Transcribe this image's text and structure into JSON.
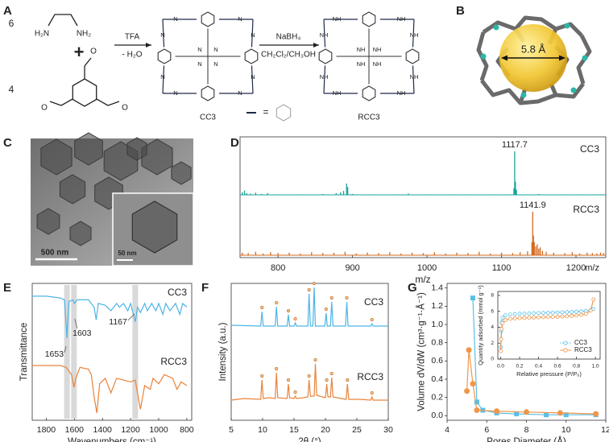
{
  "panel_a": {
    "label": "A",
    "diamine_coefficient": "6",
    "diamine_labels": [
      "H₂N",
      "NH₂"
    ],
    "plus": "+",
    "aldehyde_coefficient": "4",
    "aldehyde_labels": [
      "O",
      "O",
      "O"
    ],
    "step1_reagents": [
      "TFA",
      "- H₂O"
    ],
    "step2_reagents": [
      "NaBH₄",
      "CH₂Cl₂/CH₃OH"
    ],
    "products": [
      "CC3",
      "RCC3"
    ],
    "cc3_atoms": [
      "N",
      "N",
      "N",
      "N",
      "N",
      "N",
      "N",
      "N",
      "N",
      "N",
      "N",
      "N"
    ],
    "rcc3_atoms": [
      "NH",
      "NH",
      "NH",
      "NH",
      "NH",
      "NH",
      "NH",
      "NH",
      "NH",
      "NH",
      "NH",
      "NH"
    ],
    "key_equals": "="
  },
  "panel_b": {
    "label": "B",
    "cavity_label": "5.8 Å"
  },
  "panel_c": {
    "label": "C",
    "scale_bars": [
      "500 nm",
      "50 nm"
    ]
  },
  "chart_data": [
    {
      "panel": "D",
      "type": "stem",
      "x_label": "m/z",
      "xlim": [
        749,
        1240
      ],
      "xticks": [
        800,
        900,
        1000,
        1100,
        1200
      ],
      "ylim": [
        0,
        100
      ],
      "series": [
        {
          "name": "CC3",
          "color": "#17a398",
          "peak_label": 1117.7,
          "x": [
            752,
            755,
            758,
            763,
            770,
            778,
            786,
            800,
            830,
            860,
            878,
            884,
            888,
            892,
            893.5,
            900,
            930,
            960,
            975,
            1000,
            1030,
            1060,
            1090,
            1110,
            1116.7,
            1117.7,
            1118.7,
            1120,
            1135,
            1150,
            1180,
            1210,
            1225,
            1235
          ],
          "values": [
            6,
            10,
            4,
            3,
            5,
            2,
            4,
            1,
            1,
            2,
            4,
            6,
            9,
            26,
            18,
            2,
            1,
            1,
            3,
            1,
            1,
            1,
            1,
            1,
            15,
            100,
            30,
            12,
            1,
            2,
            1,
            1,
            1,
            1
          ]
        },
        {
          "name": "RCC3",
          "color": "#d2691e",
          "peak_label": 1141.9,
          "x": [
            752,
            760,
            770,
            780,
            790,
            800,
            815,
            830,
            845,
            860,
            875,
            890,
            905,
            920,
            935,
            950,
            965,
            980,
            995,
            1010,
            1025,
            1040,
            1055,
            1070,
            1085,
            1100,
            1115,
            1125,
            1135,
            1140.9,
            1141.9,
            1142.9,
            1144,
            1146,
            1148,
            1150,
            1152,
            1155,
            1160,
            1170,
            1185,
            1195,
            1205,
            1215,
            1222,
            1228,
            1233,
            1237
          ],
          "values": [
            6,
            5,
            8,
            4,
            7,
            5,
            6,
            4,
            7,
            5,
            6,
            8,
            4,
            6,
            5,
            7,
            4,
            6,
            5,
            7,
            4,
            6,
            5,
            8,
            4,
            6,
            5,
            7,
            9,
            30,
            100,
            45,
            30,
            20,
            25,
            15,
            18,
            10,
            8,
            6,
            5,
            7,
            4,
            6,
            5,
            4,
            6,
            5
          ]
        }
      ]
    },
    {
      "panel": "E",
      "type": "line",
      "x_label": "Wavenumbers (cm⁻¹)",
      "y_label": "Transmittance",
      "xlim": [
        1900,
        765
      ],
      "xticks": [
        1800,
        1600,
        1400,
        1200,
        1000,
        800
      ],
      "ylim": [
        20,
        95
      ],
      "highlights": [
        1653,
        1603,
        1167
      ],
      "series": [
        {
          "name": "CC3",
          "color": "#4db4e6",
          "x": [
            1900,
            1800,
            1700,
            1670,
            1653,
            1640,
            1610,
            1600,
            1580,
            1500,
            1460,
            1445,
            1430,
            1380,
            1340,
            1300,
            1280,
            1250,
            1220,
            1200,
            1167,
            1150,
            1130,
            1100,
            1080,
            1050,
            1020,
            1000,
            970,
            950,
            920,
            880,
            850,
            830,
            800
          ],
          "values": [
            88,
            88,
            87,
            86,
            65,
            85,
            86,
            84,
            86,
            86,
            82,
            75,
            84,
            83,
            80,
            84,
            82,
            84,
            80,
            84,
            74,
            82,
            79,
            84,
            80,
            84,
            80,
            84,
            78,
            84,
            80,
            84,
            78,
            84,
            82
          ]
        },
        {
          "name": "RCC3",
          "color": "#e8833a",
          "x": [
            1900,
            1800,
            1700,
            1660,
            1640,
            1620,
            1603,
            1590,
            1560,
            1500,
            1480,
            1460,
            1440,
            1420,
            1380,
            1340,
            1300,
            1250,
            1200,
            1167,
            1130,
            1100,
            1060,
            1040,
            1000,
            960,
            900,
            870,
            840,
            800
          ],
          "values": [
            50,
            50,
            50,
            49,
            47,
            45,
            38,
            43,
            49,
            48,
            45,
            33,
            24,
            40,
            43,
            35,
            43,
            42,
            41,
            42,
            26,
            39,
            37,
            43,
            40,
            45,
            43,
            37,
            41,
            39
          ]
        }
      ]
    },
    {
      "panel": "F",
      "type": "line",
      "x_label": "2θ (°)",
      "y_label": "Intensity (a.u.)",
      "xlim": [
        5,
        30
      ],
      "xticks": [
        5,
        10,
        15,
        20,
        25,
        30
      ],
      "ylim": [
        0,
        170
      ],
      "peak_markers": true,
      "series": [
        {
          "name": "CC3",
          "color": "#4db4e6",
          "x": [
            5,
            9.7,
            9.9,
            10.1,
            12.0,
            12.2,
            12.4,
            13.9,
            14.1,
            14.3,
            15.0,
            15.2,
            15.4,
            17.2,
            17.4,
            17.6,
            18.0,
            18.2,
            18.4,
            19.9,
            20.1,
            20.3,
            20.8,
            21.0,
            21.2,
            23.2,
            23.4,
            23.6,
            27.2,
            27.4,
            27.6,
            30
          ],
          "values": [
            118,
            117,
            135,
            117,
            117,
            141,
            117,
            117,
            131,
            117,
            117,
            121,
            117,
            117,
            157,
            117,
            117,
            165,
            117,
            117,
            133,
            117,
            117,
            147,
            117,
            117,
            147,
            117,
            117,
            120,
            117,
            117
          ]
        },
        {
          "name": "RCC3",
          "color": "#e8833a",
          "x": [
            5,
            7,
            9.7,
            9.9,
            10.1,
            11,
            12.0,
            12.2,
            12.4,
            13.9,
            14.1,
            14.3,
            15.0,
            15.2,
            15.4,
            16.5,
            17.2,
            17.4,
            17.6,
            18.2,
            18.4,
            18.6,
            20.0,
            20.2,
            20.4,
            20.8,
            21.0,
            21.2,
            22.5,
            23.3,
            23.5,
            23.7,
            25.5,
            27.2,
            27.4,
            27.6,
            30
          ],
          "values": [
            25,
            27,
            26,
            50,
            27,
            28,
            27,
            59,
            28,
            27,
            45,
            28,
            27,
            30,
            27,
            28,
            29,
            50,
            30,
            30,
            70,
            31,
            28,
            45,
            29,
            29,
            53,
            29,
            27,
            26,
            45,
            26,
            26,
            25,
            29,
            25,
            25
          ]
        }
      ]
    },
    {
      "panel": "G",
      "type": "line",
      "x_label": "Pores Diameter (Å)",
      "y_label": "Volume dV/dW (cm³·g⁻¹·Å⁻¹)",
      "xlim": [
        4,
        12
      ],
      "xticks": [
        4,
        6,
        8,
        10,
        12
      ],
      "ylim": [
        -0.05,
        1.45
      ],
      "yticks": [
        {
          "value": 0,
          "label": "0.0"
        },
        0.2,
        0.4,
        0.6,
        0.8,
        {
          "value": 1,
          "label": "1.0"
        },
        1.2,
        1.4
      ],
      "series": [
        {
          "color": "#5bbfe6",
          "marker": "square",
          "x": [
            5.3,
            5.5,
            5.8,
            6.5,
            7.5,
            9,
            10,
            11.5
          ],
          "values": [
            1.29,
            0.15,
            0.06,
            0.03,
            0.02,
            0.01,
            0.01,
            0.01
          ]
        },
        {
          "color": "#f0964a",
          "marker": "circle",
          "x": [
            5.0,
            5.1,
            5.3,
            5.5,
            6.5,
            8,
            9.7,
            11.5
          ],
          "values": [
            0.27,
            0.72,
            0.35,
            0.06,
            0.05,
            0.04,
            0.03,
            0.02
          ]
        }
      ],
      "inset": {
        "type": "line",
        "x_label": "Relative pressure (P/P₀)",
        "y_label": "Quantity adsorbed (mmol g⁻¹)",
        "xlim": [
          -0.03,
          1.05
        ],
        "ylim": [
          0,
          8.5
        ],
        "legend": "lower right",
        "xticks": [
          {
            "value": 0,
            "label": "0.0"
          },
          0.2,
          0.4,
          0.6,
          0.8,
          {
            "value": 1,
            "label": "1.0"
          }
        ],
        "yticks": [
          0,
          2,
          4,
          6,
          8
        ],
        "x": [
          0.001,
          0.005,
          0.01,
          0.02,
          0.05,
          0.1,
          0.15,
          0.2,
          0.25,
          0.3,
          0.35,
          0.4,
          0.45,
          0.5,
          0.55,
          0.6,
          0.65,
          0.7,
          0.75,
          0.8,
          0.85,
          0.9,
          0.95,
          0.98
        ],
        "series": [
          {
            "name": "CC3",
            "color": "#5bbfe6",
            "line": "dotted",
            "values": [
              1.5,
              3.5,
              4.6,
              5.2,
              5.5,
              5.6,
              5.65,
              5.7,
              5.72,
              5.74,
              5.76,
              5.78,
              5.8,
              5.82,
              5.84,
              5.86,
              5.88,
              5.9,
              5.92,
              5.95,
              6.0,
              6.05,
              6.15,
              6.3
            ]
          },
          {
            "name": "RCC3",
            "color": "#f0964a",
            "line": "solid",
            "values": [
              1.0,
              2.5,
              3.8,
              4.5,
              4.9,
              5.05,
              5.1,
              5.15,
              5.18,
              5.2,
              5.22,
              5.24,
              5.26,
              5.28,
              5.3,
              5.32,
              5.35,
              5.38,
              5.42,
              5.48,
              5.56,
              5.7,
              6.1,
              7.5
            ]
          }
        ]
      }
    }
  ]
}
